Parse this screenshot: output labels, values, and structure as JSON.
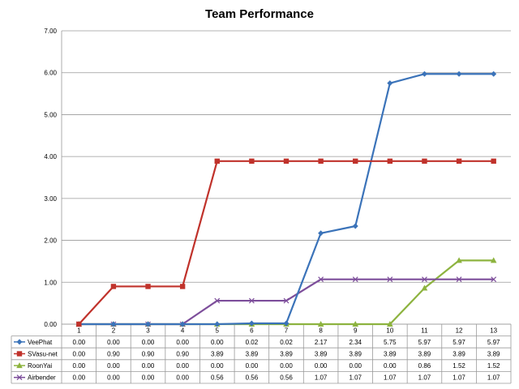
{
  "chart_data": {
    "type": "line",
    "title": "Team Performance",
    "categories": [
      "1",
      "2",
      "3",
      "4",
      "5",
      "6",
      "7",
      "8",
      "9",
      "10",
      "11",
      "12",
      "13"
    ],
    "ylim": [
      0,
      7
    ],
    "yticks": [
      "0.00",
      "1.00",
      "2.00",
      "3.00",
      "4.00",
      "5.00",
      "6.00",
      "7.00"
    ],
    "grid": "horizontal",
    "legend_placement": "data-table",
    "series": [
      {
        "name": "VeePhat",
        "color": "#3b73b9",
        "marker": "diamond",
        "values": [
          0.0,
          0.0,
          0.0,
          0.0,
          0.0,
          0.02,
          0.02,
          2.17,
          2.34,
          5.75,
          5.97,
          5.97,
          5.97
        ],
        "labels": [
          "0.00",
          "0.00",
          "0.00",
          "0.00",
          "0.00",
          "0.02",
          "0.02",
          "2.17",
          "2.34",
          "5.75",
          "5.97",
          "5.97",
          "5.97"
        ]
      },
      {
        "name": "SVasu-net",
        "color": "#c0322b",
        "marker": "square",
        "values": [
          0.0,
          0.9,
          0.9,
          0.9,
          3.89,
          3.89,
          3.89,
          3.89,
          3.89,
          3.89,
          3.89,
          3.89,
          3.89
        ],
        "labels": [
          "0.00",
          "0.90",
          "0.90",
          "0.90",
          "3.89",
          "3.89",
          "3.89",
          "3.89",
          "3.89",
          "3.89",
          "3.89",
          "3.89",
          "3.89"
        ]
      },
      {
        "name": "RoonYai",
        "color": "#8db33f",
        "marker": "triangle",
        "values": [
          0.0,
          0.0,
          0.0,
          0.0,
          0.0,
          0.0,
          0.0,
          0.0,
          0.0,
          0.0,
          0.86,
          1.52,
          1.52
        ],
        "labels": [
          "0.00",
          "0.00",
          "0.00",
          "0.00",
          "0.00",
          "0.00",
          "0.00",
          "0.00",
          "0.00",
          "0.00",
          "0.86",
          "1.52",
          "1.52"
        ]
      },
      {
        "name": "Airbender",
        "color": "#7d4e9b",
        "marker": "x",
        "values": [
          0.0,
          0.0,
          0.0,
          0.0,
          0.56,
          0.56,
          0.56,
          1.07,
          1.07,
          1.07,
          1.07,
          1.07,
          1.07
        ],
        "labels": [
          "0.00",
          "0.00",
          "0.00",
          "0.00",
          "0.56",
          "0.56",
          "0.56",
          "1.07",
          "1.07",
          "1.07",
          "1.07",
          "1.07",
          "1.07"
        ]
      }
    ]
  }
}
